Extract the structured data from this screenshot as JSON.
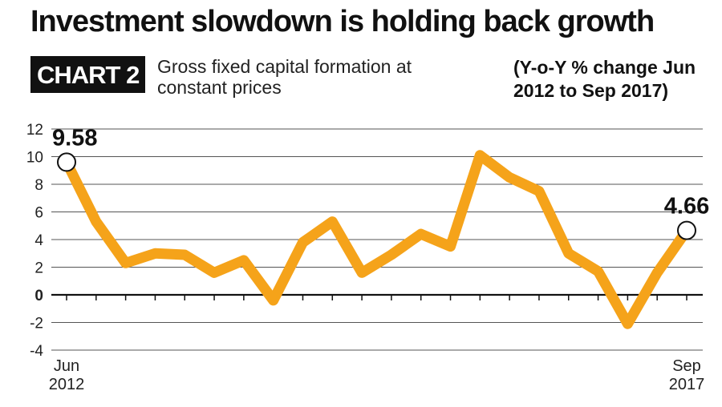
{
  "headline": "Investment slowdown is holding back growth",
  "badge": "CHART 2",
  "subtitle": "Gross fixed capital formation at constant prices",
  "note": "(Y-o-Y % change Jun 2012 to Sep 2017)",
  "chart_data": {
    "type": "line",
    "title": "Investment slowdown is holding back growth",
    "subtitle": "Gross fixed capital formation at constant prices",
    "ylabel": "",
    "xlabel": "",
    "ylim": [
      -4,
      12
    ],
    "yticks": [
      12,
      10,
      8,
      6,
      4,
      2,
      0,
      -2,
      -4
    ],
    "x_tick_labels": [
      {
        "index": 0,
        "lines": [
          "Jun",
          "2012"
        ]
      },
      {
        "index": 21,
        "lines": [
          "Sep",
          "2017"
        ]
      }
    ],
    "x": [
      "Jun 2012",
      "Sep 2012",
      "Dec 2012",
      "Mar 2013",
      "Jun 2013",
      "Sep 2013",
      "Dec 2013",
      "Mar 2014",
      "Jun 2014",
      "Sep 2014",
      "Dec 2014",
      "Mar 2015",
      "Jun 2015",
      "Sep 2015",
      "Dec 2015",
      "Mar 2016",
      "Jun 2016",
      "Sep 2016",
      "Dec 2016",
      "Mar 2017",
      "Jun 2017",
      "Sep 2017"
    ],
    "series": [
      {
        "name": "",
        "color": "#f5a31a",
        "values": [
          9.6,
          5.3,
          2.3,
          3.0,
          2.9,
          1.6,
          2.5,
          -0.4,
          3.8,
          5.3,
          1.6,
          2.9,
          4.4,
          3.5,
          10.1,
          8.5,
          7.5,
          3.0,
          1.7,
          -2.1,
          1.6,
          4.66
        ]
      }
    ],
    "data_labels": [
      {
        "index": 0,
        "text": "9.58"
      },
      {
        "index": 21,
        "text": "4.66"
      }
    ],
    "grid": true,
    "legend": "none"
  }
}
